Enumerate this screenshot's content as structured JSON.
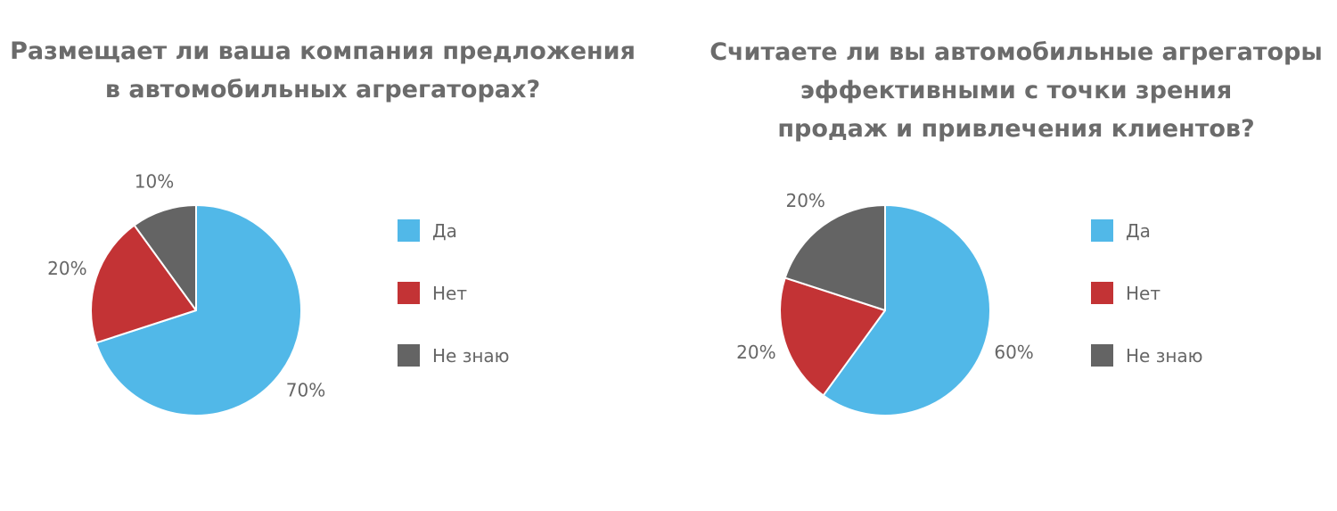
{
  "chart_data": [
    {
      "type": "pie",
      "title_lines": [
        "Размещает ли ваша компания предложения",
        "в автомобильных агрегаторах?"
      ],
      "categories": [
        "Да",
        "Нет",
        "Не знаю"
      ],
      "values": [
        70,
        20,
        10
      ],
      "value_labels": [
        "70%",
        "20%",
        "10%"
      ],
      "colors": [
        "#51B8E8",
        "#C33335",
        "#646464"
      ],
      "legend_position": "right"
    },
    {
      "type": "pie",
      "title_lines": [
        "Считаете ли вы автомобильные агрегаторы",
        "эффективными с точки зрения",
        "продаж и привлечения клиентов?"
      ],
      "categories": [
        "Да",
        "Нет",
        "Не знаю"
      ],
      "values": [
        60,
        20,
        20
      ],
      "value_labels": [
        "60%",
        "20%",
        "20%"
      ],
      "colors": [
        "#51B8E8",
        "#C33335",
        "#646464"
      ],
      "legend_position": "right"
    }
  ]
}
